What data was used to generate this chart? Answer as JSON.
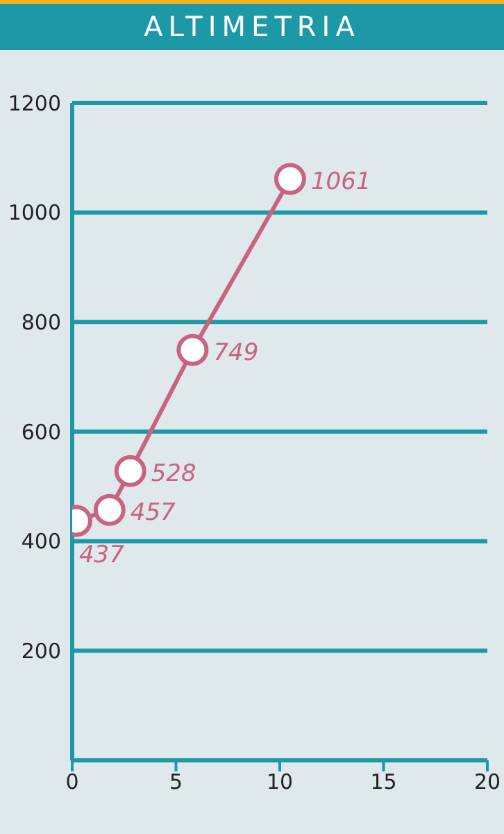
{
  "chart_data": {
    "type": "line",
    "title": "ALTIMETRIA",
    "x": [
      0.2,
      1.8,
      2.8,
      5.8,
      10.5
    ],
    "series": [
      {
        "color": "#c9637f",
        "values": [
          437,
          457,
          528,
          749,
          1061
        ]
      }
    ],
    "xlim": [
      0,
      20
    ],
    "xticks": [
      0,
      5,
      10,
      15,
      20
    ],
    "ylim": [
      0,
      1200
    ],
    "yticks": [
      {
        "value": 0,
        "label": null
      },
      200,
      400,
      600,
      800,
      1000,
      1200
    ],
    "grid": "y",
    "marker": "circle",
    "line_style": "solid",
    "data_labels": true
  }
}
